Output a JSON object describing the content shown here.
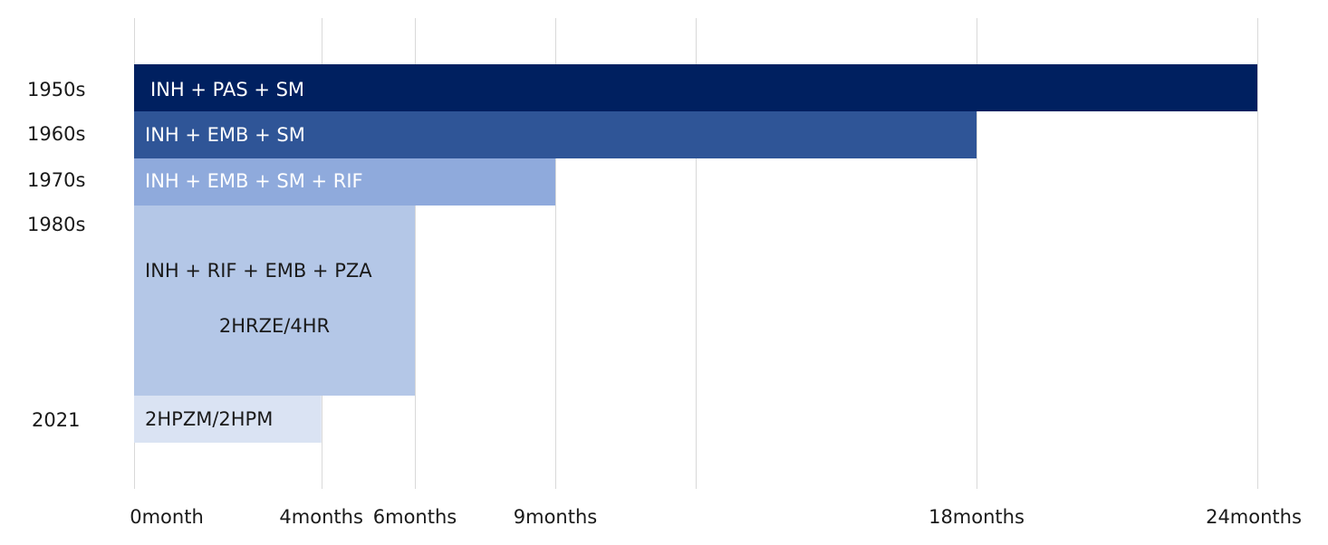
{
  "chart_data": {
    "type": "bar",
    "orientation": "horizontal",
    "title": "",
    "xlabel": "",
    "ylabel": "",
    "xlim": [
      0,
      24
    ],
    "grid": "vertical",
    "x_ticks": [
      {
        "value": 0,
        "label": "0month"
      },
      {
        "value": 4,
        "label": "4months"
      },
      {
        "value": 6,
        "label": "6months"
      },
      {
        "value": 9,
        "label": "9months"
      },
      {
        "value": 12,
        "label": ""
      },
      {
        "value": 18,
        "label": "18months"
      },
      {
        "value": 24,
        "label": "24months"
      }
    ],
    "rows": [
      {
        "label": "1950s",
        "start": 0,
        "end": 24,
        "lines": [
          "INH + PAS + SM"
        ],
        "color": "#002060",
        "text_color": "#ffffff"
      },
      {
        "label": "1960s",
        "start": 0,
        "end": 18,
        "lines": [
          "INH + EMB + SM"
        ],
        "color": "#2f5597",
        "text_color": "#ffffff"
      },
      {
        "label": "1970s",
        "start": 0,
        "end": 9,
        "lines": [
          "INH + EMB + SM + RIF"
        ],
        "color": "#8faadc",
        "text_color": "#ffffff"
      },
      {
        "label": "1980s",
        "start": 0,
        "end": 6,
        "lines": [
          "INH + RIF + EMB + PZA",
          "2HRZE/4HR"
        ],
        "color": "#b4c7e7",
        "text_color": "#1a1a1a"
      },
      {
        "label": "2021",
        "start": 0,
        "end": 4,
        "lines": [
          "2HPZM/2HPM"
        ],
        "color": "#dae3f3",
        "text_color": "#1a1a1a"
      }
    ]
  }
}
